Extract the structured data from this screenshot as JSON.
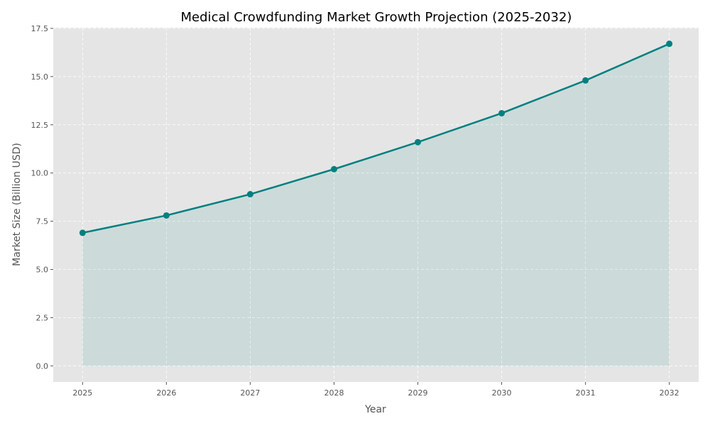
{
  "chart_data": {
    "type": "area",
    "title": "Medical Crowdfunding Market Growth Projection (2025-2032)",
    "xlabel": "Year",
    "ylabel": "Market Size (Billion USD)",
    "x": [
      2025,
      2026,
      2027,
      2028,
      2029,
      2030,
      2031,
      2032
    ],
    "values": [
      6.9,
      7.8,
      8.9,
      10.2,
      11.6,
      13.1,
      14.8,
      16.7
    ],
    "xlim": [
      2024.65,
      2032.35
    ],
    "ylim": [
      -0.835,
      17.535
    ],
    "yticks": [
      "0.0",
      "2.5",
      "5.0",
      "7.5",
      "10.0",
      "12.5",
      "15.0",
      "17.5"
    ],
    "xticks": [
      "2025",
      "2026",
      "2027",
      "2028",
      "2029",
      "2030",
      "2031",
      "2032"
    ],
    "grid": true,
    "colors": {
      "line": "#008080",
      "fill": "#008080",
      "background": "#e5e5e5",
      "grid": "#ffffff"
    }
  }
}
